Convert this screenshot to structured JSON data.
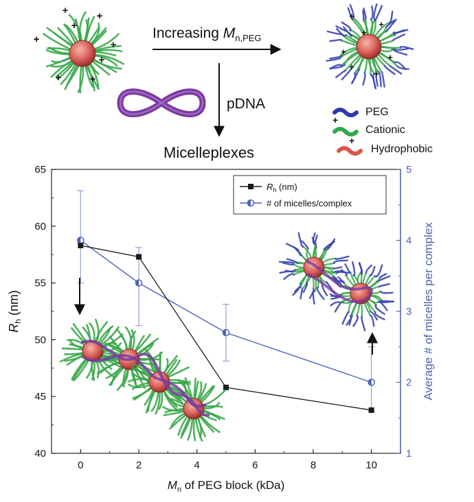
{
  "scheme": {
    "arrow_label_prefix": "Increasing ",
    "arrow_label_symbol": "M",
    "arrow_label_subscript": "n,PEG",
    "down_arrow_label": "pDNA",
    "product_label": "Micelleplexes",
    "legend": [
      {
        "label": "PEG",
        "color": "#2b3aa8"
      },
      {
        "label": "Cationic",
        "color": "#2fa84a"
      },
      {
        "label": "Hydrophobic",
        "color": "#d9544a"
      }
    ],
    "charge_symbol": "+"
  },
  "colors": {
    "rh_series": "#1a1a1a",
    "micelles_series": "#4a63b8",
    "right_axis": "#4a63b8",
    "core": "#d9605a",
    "corona": "#3aa84a",
    "peg": "#3a44b0",
    "pdna": "#7a3aa0"
  },
  "chart_data": {
    "type": "line",
    "x": [
      0,
      2,
      5,
      10
    ],
    "xlabel_symbol": "M",
    "xlabel_subscript": "n",
    "xlabel_rest": " of PEG block (kDa)",
    "ylabel_symbol": "R",
    "ylabel_subscript": "h",
    "ylabel_rest": " (nm)",
    "y2label": "Average # of micelles per complex",
    "xlim": [
      -1,
      11
    ],
    "ylim": [
      40,
      65
    ],
    "y2lim": [
      1,
      5
    ],
    "xticks": [
      "0",
      "2",
      "4",
      "6",
      "8",
      "10"
    ],
    "yticks": [
      "40",
      "45",
      "50",
      "55",
      "60",
      "65"
    ],
    "y2ticks": [
      "1",
      "2",
      "3",
      "4",
      "5"
    ],
    "series": [
      {
        "name_symbol": "R",
        "name_subscript": "h",
        "name_rest": " (nm)",
        "axis": "left",
        "marker": "square",
        "values": [
          58.3,
          57.3,
          45.8,
          43.8
        ]
      },
      {
        "name": "# of micelles/complex",
        "axis": "right",
        "marker": "half-circle",
        "values": [
          4.0,
          3.4,
          2.7,
          2.0
        ],
        "error_low": [
          3.4,
          2.8,
          2.3,
          1.6
        ],
        "error_high": [
          4.7,
          3.9,
          3.1,
          2.5
        ]
      }
    ],
    "legend_position": "top-right",
    "grid": false
  }
}
